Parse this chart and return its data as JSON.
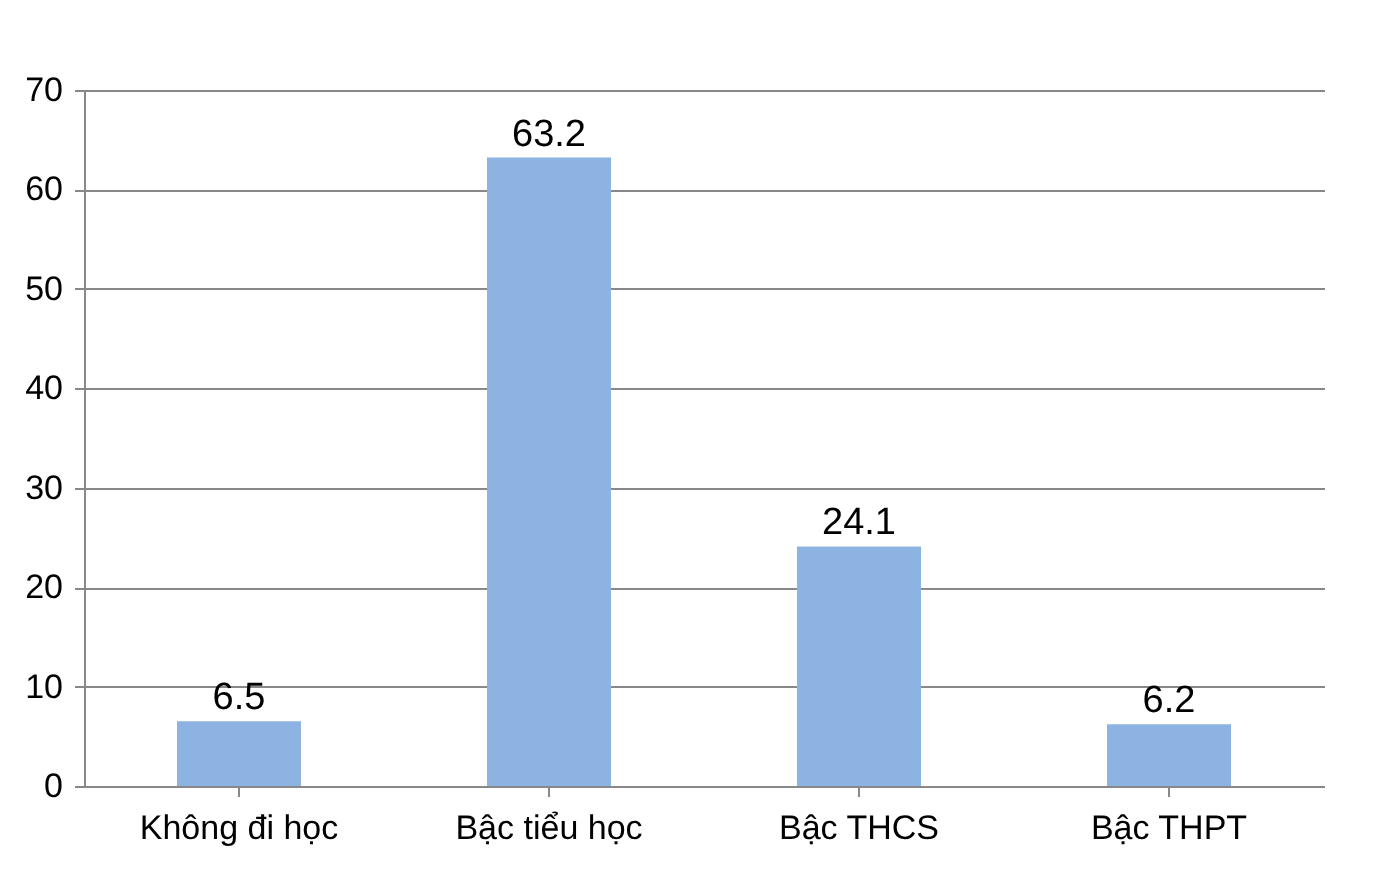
{
  "chart_data": {
    "type": "bar",
    "categories": [
      "Không đi học",
      "Bậc tiểu học",
      "Bậc THCS",
      "Bậc THPT"
    ],
    "values": [
      6.5,
      63.2,
      24.1,
      6.2
    ],
    "color": "#8db3e2",
    "ylim": [
      0,
      70
    ],
    "yticks": [
      0,
      10,
      20,
      30,
      40,
      50,
      60,
      70
    ],
    "grid": "y",
    "data_labels": true
  }
}
